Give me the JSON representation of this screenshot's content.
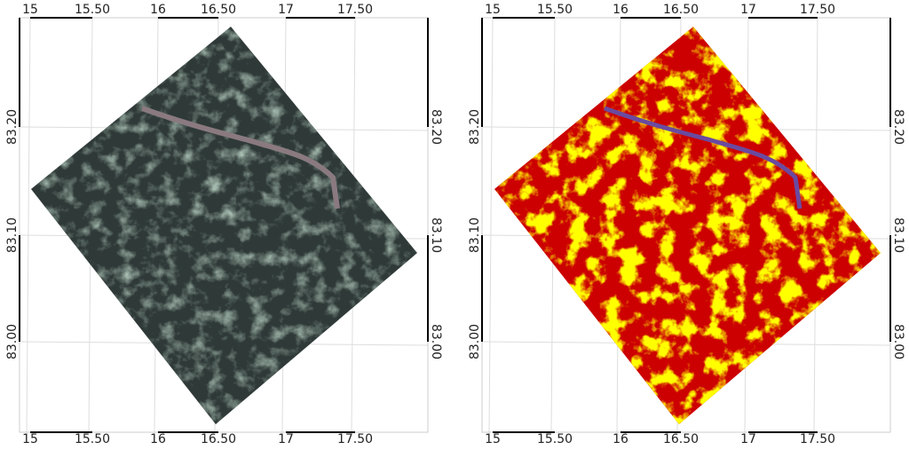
{
  "panels": [
    {
      "lon_labels": [
        "15",
        "15.50",
        "16",
        "16.50",
        "17",
        "17.50"
      ],
      "lat_labels": [
        "83.20",
        "83.10",
        "83.00"
      ]
    },
    {
      "lon_labels": [
        "15",
        "15.50",
        "16",
        "16.50",
        "17",
        "17.50"
      ],
      "lat_labels": [
        "83.20",
        "83.10",
        "83.00"
      ]
    }
  ]
}
